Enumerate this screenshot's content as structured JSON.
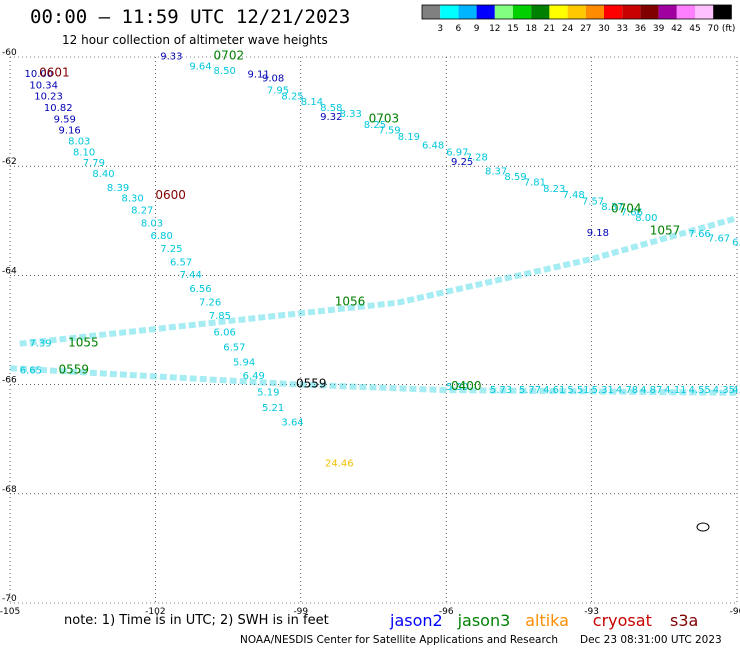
{
  "header": {
    "title": "00:00 – 11:59 UTC 12/21/2023",
    "subtitle": "12 hour collection of altimeter wave heights"
  },
  "colorbar": {
    "colors": [
      "#808080",
      "#00ffff",
      "#00b4ff",
      "#0000ff",
      "#80ff80",
      "#00d000",
      "#008000",
      "#ffff00",
      "#ffc800",
      "#ff8c00",
      "#ff0000",
      "#c80000",
      "#800000",
      "#a000a0",
      "#ff80ff",
      "#ffc0ff",
      "#000000"
    ],
    "labels": [
      "3",
      "6",
      "9",
      "12",
      "15",
      "18",
      "21",
      "24",
      "27",
      "30",
      "33",
      "36",
      "39",
      "42",
      "45",
      "70"
    ],
    "unit": "(ft)"
  },
  "footer": {
    "note": "note:  1) Time is in UTC;  2) SWH is in feet",
    "credit": "NOAA/NESDIS Center for Satellite Applications and Research",
    "timestamp": "Dec 23 08:31:00 UTC 2023",
    "legend": [
      {
        "name": "jason2",
        "color": "#0000ff"
      },
      {
        "name": "jason3",
        "color": "#008000"
      },
      {
        "name": "altika",
        "color": "#ff8c00"
      },
      {
        "name": "cryosat",
        "color": "#c80000"
      },
      {
        "name": "s3a",
        "color": "#800000"
      }
    ]
  },
  "chart_data": {
    "type": "scatter",
    "title": "00:00 – 11:59 UTC 12/21/2023",
    "subtitle": "12 hour collection of altimeter wave heights",
    "xlim": [
      -105,
      -90
    ],
    "ylim": [
      -70,
      -60
    ],
    "xticks": [
      -105,
      -102,
      -99,
      -96,
      -93,
      -90
    ],
    "yticks": [
      -60,
      -62,
      -64,
      -66,
      -68,
      -70
    ],
    "xtick_labels": [
      "-105",
      "-102",
      "-99",
      "-96",
      "-93",
      "-90"
    ],
    "ytick_labels": [
      "-60",
      "-62",
      "-64",
      "-66",
      "-68",
      "-70"
    ],
    "grid": true,
    "series": [
      {
        "color": "#0000b4",
        "points": [
          {
            "x": -104.7,
            "y": -60.37,
            "label": "10.00"
          },
          {
            "x": -104.6,
            "y": -60.58,
            "label": "10.34"
          },
          {
            "x": -104.5,
            "y": -60.78,
            "label": "10.23"
          },
          {
            "x": -104.3,
            "y": -60.99,
            "label": "10.82"
          },
          {
            "x": -104.1,
            "y": -61.2,
            "label": "9.59"
          },
          {
            "x": -104.0,
            "y": -61.4,
            "label": "9.16"
          },
          {
            "x": -101.9,
            "y": -60.05,
            "label": "9.33"
          },
          {
            "x": -100.1,
            "y": -60.38,
            "label": "9.11"
          },
          {
            "x": -99.8,
            "y": -60.45,
            "label": "9.08"
          },
          {
            "x": -98.6,
            "y": -61.15,
            "label": "9.32"
          },
          {
            "x": -95.9,
            "y": -61.98,
            "label": "9.25"
          },
          {
            "x": -93.1,
            "y": -63.28,
            "label": "9.18"
          }
        ]
      },
      {
        "color": "#00c8dc",
        "points": [
          {
            "x": -103.8,
            "y": -61.6,
            "label": "8.03"
          },
          {
            "x": -103.7,
            "y": -61.8,
            "label": "8.10"
          },
          {
            "x": -103.5,
            "y": -62.0,
            "label": "7.79"
          },
          {
            "x": -103.3,
            "y": -62.2,
            "label": "8.40"
          },
          {
            "x": -103.0,
            "y": -62.45,
            "label": "8.39"
          },
          {
            "x": -102.7,
            "y": -62.65,
            "label": "8.30"
          },
          {
            "x": -102.5,
            "y": -62.87,
            "label": "8.27"
          },
          {
            "x": -102.3,
            "y": -63.1,
            "label": "8.03"
          },
          {
            "x": -102.1,
            "y": -63.33,
            "label": "6.80"
          },
          {
            "x": -101.9,
            "y": -63.57,
            "label": "7.25"
          },
          {
            "x": -101.7,
            "y": -63.82,
            "label": "6.57"
          },
          {
            "x": -101.5,
            "y": -64.05,
            "label": "7.44"
          },
          {
            "x": -101.3,
            "y": -64.3,
            "label": "6.56"
          },
          {
            "x": -101.1,
            "y": -64.55,
            "label": "7.26"
          },
          {
            "x": -100.9,
            "y": -64.8,
            "label": "7.85"
          },
          {
            "x": -100.8,
            "y": -65.1,
            "label": "6.06"
          },
          {
            "x": -100.6,
            "y": -65.38,
            "label": "6.57"
          },
          {
            "x": -100.4,
            "y": -65.65,
            "label": "5.94"
          },
          {
            "x": -100.2,
            "y": -65.9,
            "label": "6.49"
          },
          {
            "x": -99.9,
            "y": -66.2,
            "label": "5.19"
          },
          {
            "x": -99.8,
            "y": -66.48,
            "label": "5.21"
          },
          {
            "x": -99.4,
            "y": -66.75,
            "label": "3.64"
          },
          {
            "x": -101.3,
            "y": -60.23,
            "label": "9.64"
          },
          {
            "x": -100.8,
            "y": -60.31,
            "label": "8.50"
          },
          {
            "x": -99.7,
            "y": -60.67,
            "label": "7.95"
          },
          {
            "x": -99.4,
            "y": -60.78,
            "label": "8.25"
          },
          {
            "x": -99.0,
            "y": -60.88,
            "label": "8.14"
          },
          {
            "x": -98.6,
            "y": -60.99,
            "label": "8.58"
          },
          {
            "x": -98.2,
            "y": -61.1,
            "label": "8.33"
          },
          {
            "x": -97.7,
            "y": -61.3,
            "label": "8.25"
          },
          {
            "x": -97.4,
            "y": -61.4,
            "label": "7.59"
          },
          {
            "x": -97.0,
            "y": -61.52,
            "label": "8.19"
          },
          {
            "x": -96.5,
            "y": -61.68,
            "label": "6.48"
          },
          {
            "x": -96.0,
            "y": -61.8,
            "label": "6.97"
          },
          {
            "x": -95.6,
            "y": -61.9,
            "label": "7.28"
          },
          {
            "x": -95.2,
            "y": -62.15,
            "label": "8.37"
          },
          {
            "x": -94.8,
            "y": -62.25,
            "label": "8.59"
          },
          {
            "x": -94.4,
            "y": -62.35,
            "label": "7.81"
          },
          {
            "x": -94.0,
            "y": -62.47,
            "label": "8.23"
          },
          {
            "x": -93.6,
            "y": -62.58,
            "label": "7.48"
          },
          {
            "x": -93.2,
            "y": -62.7,
            "label": "7.57"
          },
          {
            "x": -92.8,
            "y": -62.8,
            "label": "8.37"
          },
          {
            "x": -92.4,
            "y": -62.9,
            "label": "7.66"
          },
          {
            "x": -92.1,
            "y": -63.0,
            "label": "8.00"
          },
          {
            "x": -91.0,
            "y": -63.3,
            "label": "7.66"
          },
          {
            "x": -90.6,
            "y": -63.38,
            "label": "7.67"
          },
          {
            "x": -90.1,
            "y": -63.45,
            "label": "6.92"
          },
          {
            "x": -96.0,
            "y": -66.1,
            "label": "5.30"
          },
          {
            "x": -95.1,
            "y": -66.15,
            "label": "5.73"
          },
          {
            "x": -94.5,
            "y": -66.15,
            "label": "5.77"
          },
          {
            "x": -94.0,
            "y": -66.15,
            "label": "4.61"
          },
          {
            "x": -93.5,
            "y": -66.15,
            "label": "5.51"
          },
          {
            "x": -93.0,
            "y": -66.15,
            "label": "5.31"
          },
          {
            "x": -92.5,
            "y": -66.15,
            "label": "4.78"
          },
          {
            "x": -92.0,
            "y": -66.15,
            "label": "4.87"
          },
          {
            "x": -91.5,
            "y": -66.15,
            "label": "4.11"
          },
          {
            "x": -91.0,
            "y": -66.15,
            "label": "4.55"
          },
          {
            "x": -90.5,
            "y": -66.15,
            "label": "4.35"
          },
          {
            "x": -90.1,
            "y": -66.15,
            "label": "4.01"
          },
          {
            "x": -104.6,
            "y": -65.3,
            "label": "7.39"
          },
          {
            "x": -104.8,
            "y": -65.8,
            "label": "6.65"
          }
        ]
      },
      {
        "color": "#f0c000",
        "points": [
          {
            "x": -98.5,
            "y": -67.5,
            "label": "24.46"
          }
        ]
      }
    ],
    "annotations": [
      {
        "x": -104.4,
        "y": -60.36,
        "text": "0601",
        "color": "#800000"
      },
      {
        "x": -102.0,
        "y": -62.6,
        "text": "0600",
        "color": "#800000"
      },
      {
        "x": -100.8,
        "y": -60.05,
        "text": "0702",
        "color": "#008000"
      },
      {
        "x": -97.6,
        "y": -61.2,
        "text": "0703",
        "color": "#008000"
      },
      {
        "x": -92.6,
        "y": -62.85,
        "text": "0704",
        "color": "#008000"
      },
      {
        "x": -98.3,
        "y": -64.55,
        "text": "1056",
        "color": "#008000"
      },
      {
        "x": -91.8,
        "y": -63.25,
        "text": "1057",
        "color": "#008000"
      },
      {
        "x": -103.8,
        "y": -65.3,
        "text": "1055",
        "color": "#008000"
      },
      {
        "x": -104.0,
        "y": -65.8,
        "text": "0559",
        "color": "#008000"
      },
      {
        "x": -99.1,
        "y": -66.05,
        "text": "0559",
        "color": "#000000"
      },
      {
        "x": -95.9,
        "y": -66.1,
        "text": "0400",
        "color": "#008000"
      }
    ],
    "tracks": [
      {
        "color": "#00c8dc",
        "points": [
          [
            -104.8,
            -65.25
          ],
          [
            -97,
            -64.5
          ],
          [
            -93,
            -63.7
          ],
          [
            -90,
            -62.95
          ]
        ]
      },
      {
        "color": "#00c8dc",
        "points": [
          [
            -105,
            -65.7
          ],
          [
            -102,
            -65.85
          ],
          [
            -99,
            -66.0
          ],
          [
            -96,
            -66.1
          ],
          [
            -90,
            -66.15
          ]
        ]
      }
    ]
  }
}
